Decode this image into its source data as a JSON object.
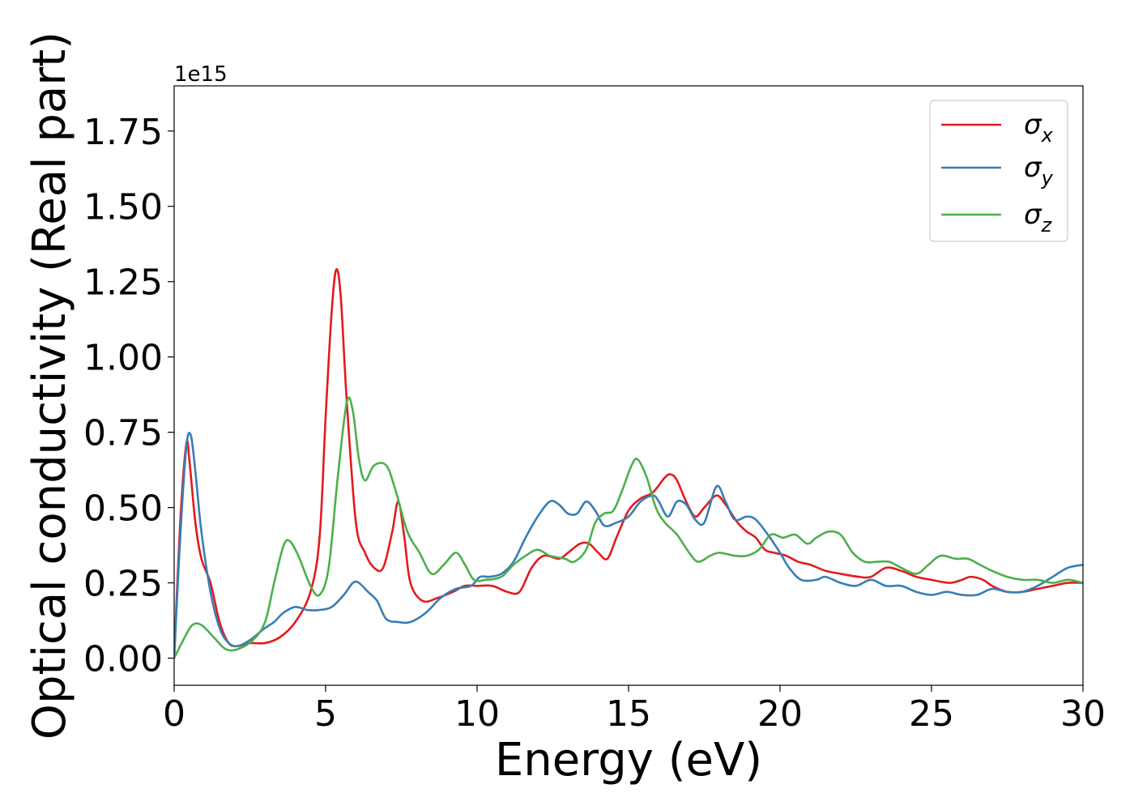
{
  "chart_data": {
    "type": "line",
    "xlabel": "Energy (eV)",
    "ylabel": "Optical conductivity (Real part)",
    "y_offset_label": "1e15",
    "xlim": [
      0,
      30
    ],
    "ylim": [
      -0.09,
      1.9
    ],
    "y_scale_factor": 1000000000000000.0,
    "xticks": [
      0,
      5,
      10,
      15,
      20,
      25,
      30
    ],
    "xtick_labels": [
      "0",
      "5",
      "10",
      "15",
      "20",
      "25",
      "30"
    ],
    "yticks": [
      0.0,
      0.25,
      0.5,
      0.75,
      1.0,
      1.25,
      1.5,
      1.75
    ],
    "ytick_labels": [
      "0.00",
      "0.25",
      "0.50",
      "0.75",
      "1.00",
      "1.25",
      "1.50",
      "1.75"
    ],
    "grid": false,
    "legend": {
      "placement": "top-right"
    },
    "series": [
      {
        "name": "σx",
        "legend_base": "σ",
        "legend_sub": "x",
        "color": "#e41a1c",
        "points": [
          [
            0,
            0
          ],
          [
            0.2,
            0.45
          ],
          [
            0.4,
            0.71
          ],
          [
            0.5,
            0.66
          ],
          [
            0.7,
            0.45
          ],
          [
            0.9,
            0.33
          ],
          [
            1.2,
            0.25
          ],
          [
            1.5,
            0.12
          ],
          [
            1.8,
            0.05
          ],
          [
            2.1,
            0.04
          ],
          [
            2.5,
            0.05
          ],
          [
            3.0,
            0.05
          ],
          [
            3.5,
            0.07
          ],
          [
            4.0,
            0.12
          ],
          [
            4.5,
            0.22
          ],
          [
            4.8,
            0.4
          ],
          [
            5.0,
            0.8
          ],
          [
            5.2,
            1.15
          ],
          [
            5.35,
            1.29
          ],
          [
            5.5,
            1.2
          ],
          [
            5.7,
            0.85
          ],
          [
            6.0,
            0.45
          ],
          [
            6.3,
            0.35
          ],
          [
            6.6,
            0.3
          ],
          [
            6.9,
            0.3
          ],
          [
            7.2,
            0.42
          ],
          [
            7.4,
            0.52
          ],
          [
            7.6,
            0.4
          ],
          [
            7.8,
            0.25
          ],
          [
            8.2,
            0.19
          ],
          [
            8.7,
            0.2
          ],
          [
            9.2,
            0.22
          ],
          [
            9.6,
            0.24
          ],
          [
            10.0,
            0.24
          ],
          [
            10.5,
            0.24
          ],
          [
            11.0,
            0.22
          ],
          [
            11.4,
            0.22
          ],
          [
            11.8,
            0.3
          ],
          [
            12.2,
            0.34
          ],
          [
            12.7,
            0.33
          ],
          [
            13.0,
            0.35
          ],
          [
            13.4,
            0.38
          ],
          [
            13.7,
            0.38
          ],
          [
            14.0,
            0.35
          ],
          [
            14.3,
            0.33
          ],
          [
            14.6,
            0.4
          ],
          [
            15.0,
            0.49
          ],
          [
            15.4,
            0.53
          ],
          [
            15.8,
            0.55
          ],
          [
            16.2,
            0.6
          ],
          [
            16.4,
            0.61
          ],
          [
            16.6,
            0.59
          ],
          [
            16.9,
            0.52
          ],
          [
            17.2,
            0.47
          ],
          [
            17.5,
            0.5
          ],
          [
            17.9,
            0.54
          ],
          [
            18.2,
            0.51
          ],
          [
            18.6,
            0.45
          ],
          [
            18.9,
            0.42
          ],
          [
            19.2,
            0.4
          ],
          [
            19.5,
            0.36
          ],
          [
            19.8,
            0.35
          ],
          [
            20.2,
            0.34
          ],
          [
            20.6,
            0.32
          ],
          [
            21.0,
            0.31
          ],
          [
            21.5,
            0.29
          ],
          [
            22.0,
            0.28
          ],
          [
            22.6,
            0.27
          ],
          [
            23.0,
            0.27
          ],
          [
            23.5,
            0.3
          ],
          [
            24.0,
            0.29
          ],
          [
            24.5,
            0.27
          ],
          [
            25.0,
            0.26
          ],
          [
            25.6,
            0.25
          ],
          [
            26.0,
            0.26
          ],
          [
            26.3,
            0.27
          ],
          [
            26.7,
            0.26
          ],
          [
            27.0,
            0.24
          ],
          [
            27.5,
            0.22
          ],
          [
            28.0,
            0.22
          ],
          [
            28.5,
            0.23
          ],
          [
            29.0,
            0.24
          ],
          [
            29.5,
            0.25
          ],
          [
            30.0,
            0.25
          ]
        ]
      },
      {
        "name": "σy",
        "legend_base": "σ",
        "legend_sub": "y",
        "color": "#377eb8",
        "points": [
          [
            0,
            0
          ],
          [
            0.2,
            0.4
          ],
          [
            0.4,
            0.7
          ],
          [
            0.55,
            0.74
          ],
          [
            0.7,
            0.62
          ],
          [
            0.9,
            0.42
          ],
          [
            1.2,
            0.22
          ],
          [
            1.5,
            0.1
          ],
          [
            1.8,
            0.05
          ],
          [
            2.1,
            0.04
          ],
          [
            2.5,
            0.06
          ],
          [
            3.0,
            0.1
          ],
          [
            3.3,
            0.12
          ],
          [
            3.6,
            0.15
          ],
          [
            4.0,
            0.17
          ],
          [
            4.4,
            0.16
          ],
          [
            4.8,
            0.16
          ],
          [
            5.2,
            0.17
          ],
          [
            5.6,
            0.21
          ],
          [
            5.9,
            0.25
          ],
          [
            6.1,
            0.25
          ],
          [
            6.4,
            0.22
          ],
          [
            6.7,
            0.19
          ],
          [
            7.0,
            0.13
          ],
          [
            7.4,
            0.12
          ],
          [
            7.8,
            0.12
          ],
          [
            8.3,
            0.15
          ],
          [
            8.8,
            0.2
          ],
          [
            9.3,
            0.23
          ],
          [
            9.8,
            0.24
          ],
          [
            10.1,
            0.27
          ],
          [
            10.4,
            0.27
          ],
          [
            10.8,
            0.28
          ],
          [
            11.2,
            0.32
          ],
          [
            11.6,
            0.4
          ],
          [
            12.0,
            0.47
          ],
          [
            12.4,
            0.52
          ],
          [
            12.7,
            0.51
          ],
          [
            13.0,
            0.48
          ],
          [
            13.3,
            0.48
          ],
          [
            13.6,
            0.52
          ],
          [
            13.9,
            0.49
          ],
          [
            14.2,
            0.44
          ],
          [
            14.6,
            0.45
          ],
          [
            15.0,
            0.47
          ],
          [
            15.4,
            0.52
          ],
          [
            15.8,
            0.54
          ],
          [
            16.0,
            0.52
          ],
          [
            16.3,
            0.47
          ],
          [
            16.6,
            0.52
          ],
          [
            16.9,
            0.51
          ],
          [
            17.2,
            0.46
          ],
          [
            17.5,
            0.45
          ],
          [
            17.9,
            0.57
          ],
          [
            18.2,
            0.52
          ],
          [
            18.5,
            0.46
          ],
          [
            18.9,
            0.47
          ],
          [
            19.2,
            0.46
          ],
          [
            19.6,
            0.41
          ],
          [
            20.0,
            0.35
          ],
          [
            20.3,
            0.3
          ],
          [
            20.7,
            0.26
          ],
          [
            21.2,
            0.26
          ],
          [
            21.5,
            0.27
          ],
          [
            22.0,
            0.25
          ],
          [
            22.5,
            0.24
          ],
          [
            23.0,
            0.26
          ],
          [
            23.5,
            0.24
          ],
          [
            24.0,
            0.24
          ],
          [
            24.5,
            0.22
          ],
          [
            25.0,
            0.21
          ],
          [
            25.5,
            0.22
          ],
          [
            26.0,
            0.21
          ],
          [
            26.5,
            0.21
          ],
          [
            27.0,
            0.23
          ],
          [
            27.5,
            0.22
          ],
          [
            28.0,
            0.22
          ],
          [
            28.5,
            0.24
          ],
          [
            29.0,
            0.27
          ],
          [
            29.5,
            0.3
          ],
          [
            30.0,
            0.31
          ]
        ]
      },
      {
        "name": "σz",
        "legend_base": "σ",
        "legend_sub": "z",
        "color": "#4daf4a",
        "points": [
          [
            0,
            0
          ],
          [
            0.3,
            0.06
          ],
          [
            0.6,
            0.11
          ],
          [
            0.9,
            0.11
          ],
          [
            1.3,
            0.07
          ],
          [
            1.7,
            0.03
          ],
          [
            2.1,
            0.03
          ],
          [
            2.6,
            0.06
          ],
          [
            3.0,
            0.12
          ],
          [
            3.3,
            0.25
          ],
          [
            3.6,
            0.37
          ],
          [
            3.8,
            0.39
          ],
          [
            4.1,
            0.34
          ],
          [
            4.5,
            0.24
          ],
          [
            4.8,
            0.21
          ],
          [
            5.1,
            0.3
          ],
          [
            5.4,
            0.6
          ],
          [
            5.7,
            0.85
          ],
          [
            5.9,
            0.82
          ],
          [
            6.1,
            0.66
          ],
          [
            6.3,
            0.59
          ],
          [
            6.6,
            0.64
          ],
          [
            7.0,
            0.64
          ],
          [
            7.3,
            0.56
          ],
          [
            7.7,
            0.42
          ],
          [
            8.1,
            0.35
          ],
          [
            8.5,
            0.28
          ],
          [
            8.9,
            0.31
          ],
          [
            9.3,
            0.35
          ],
          [
            9.6,
            0.31
          ],
          [
            9.9,
            0.26
          ],
          [
            10.3,
            0.26
          ],
          [
            10.8,
            0.27
          ],
          [
            11.2,
            0.31
          ],
          [
            11.6,
            0.34
          ],
          [
            12.0,
            0.36
          ],
          [
            12.4,
            0.34
          ],
          [
            12.9,
            0.33
          ],
          [
            13.2,
            0.32
          ],
          [
            13.6,
            0.36
          ],
          [
            13.9,
            0.45
          ],
          [
            14.2,
            0.48
          ],
          [
            14.5,
            0.49
          ],
          [
            14.8,
            0.56
          ],
          [
            15.1,
            0.64
          ],
          [
            15.3,
            0.66
          ],
          [
            15.6,
            0.6
          ],
          [
            15.9,
            0.5
          ],
          [
            16.2,
            0.45
          ],
          [
            16.6,
            0.41
          ],
          [
            17.0,
            0.35
          ],
          [
            17.3,
            0.32
          ],
          [
            17.7,
            0.34
          ],
          [
            18.0,
            0.35
          ],
          [
            18.5,
            0.34
          ],
          [
            18.9,
            0.34
          ],
          [
            19.3,
            0.36
          ],
          [
            19.7,
            0.41
          ],
          [
            20.1,
            0.4
          ],
          [
            20.5,
            0.41
          ],
          [
            20.9,
            0.38
          ],
          [
            21.2,
            0.4
          ],
          [
            21.6,
            0.42
          ],
          [
            22.0,
            0.41
          ],
          [
            22.4,
            0.35
          ],
          [
            22.8,
            0.32
          ],
          [
            23.2,
            0.32
          ],
          [
            23.6,
            0.32
          ],
          [
            24.0,
            0.3
          ],
          [
            24.5,
            0.28
          ],
          [
            24.9,
            0.31
          ],
          [
            25.3,
            0.34
          ],
          [
            25.8,
            0.33
          ],
          [
            26.2,
            0.33
          ],
          [
            26.6,
            0.31
          ],
          [
            27.0,
            0.29
          ],
          [
            27.5,
            0.27
          ],
          [
            28.0,
            0.26
          ],
          [
            28.5,
            0.26
          ],
          [
            29.0,
            0.25
          ],
          [
            29.5,
            0.26
          ],
          [
            30.0,
            0.25
          ]
        ]
      }
    ]
  }
}
